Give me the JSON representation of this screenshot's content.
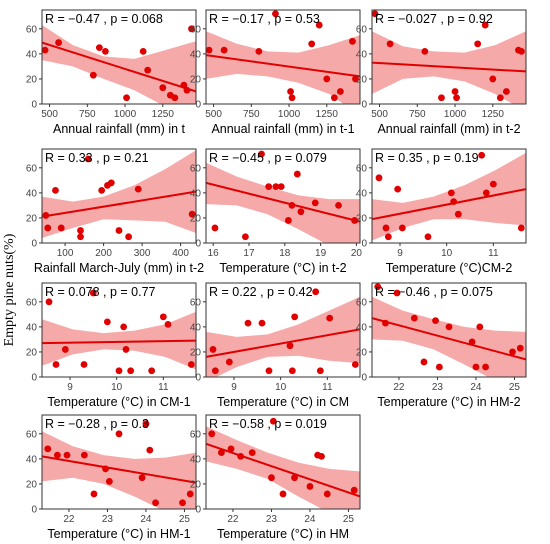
{
  "y_axis_label": "Empty pine nuts(%)",
  "colors": {
    "point": "#e00000",
    "line": "#e00000",
    "band": "#f59a9a",
    "frame": "#333333"
  },
  "chart_data": [
    {
      "type": "scatter",
      "xlabel": "Annual rainfall (mm) in t",
      "stat_text": "R = −0.47 , p = 0.068",
      "xlim": [
        450,
        1470
      ],
      "xticks": [
        500,
        750,
        1000,
        1250,
        1500
      ],
      "ylim": [
        0,
        75
      ],
      "x": [
        470,
        560,
        790,
        830,
        870,
        1010,
        1120,
        1150,
        1250,
        1300,
        1330,
        1390,
        1410,
        1440
      ],
      "y": [
        43,
        49,
        23,
        45,
        42,
        5,
        42,
        27,
        13,
        7,
        5,
        15,
        11,
        60
      ],
      "fit": {
        "x": [
          450,
          1470
        ],
        "y": [
          49,
          10
        ]
      },
      "band": {
        "upper": [
          63,
          47,
          38,
          36,
          43,
          50
        ],
        "lower": [
          35,
          30,
          20,
          11,
          -2,
          -15
        ]
      }
    },
    {
      "type": "scatter",
      "xlabel": "Annual rainfall (mm) in t-1",
      "stat_text": "R = −0.17 , p = 0.53",
      "xlim": [
        450,
        1470
      ],
      "xticks": [
        500,
        750,
        1000,
        1250,
        1500
      ],
      "ylim": [
        0,
        75
      ],
      "x": [
        470,
        570,
        800,
        910,
        1010,
        1020,
        1150,
        1200,
        1250,
        1300,
        1340,
        1420,
        1440
      ],
      "y": [
        43,
        43,
        42,
        72,
        10,
        5,
        48,
        63,
        20,
        5,
        10,
        50,
        20
      ],
      "fit": {
        "x": [
          450,
          1470
        ],
        "y": [
          39,
          22
        ]
      },
      "band": {
        "upper": [
          58,
          48,
          42,
          41,
          47,
          55
        ],
        "lower": [
          20,
          24,
          22,
          17,
          8,
          -9
        ]
      }
    },
    {
      "type": "scatter",
      "xlabel": "Annual rainfall (mm) in t-2",
      "stat_text": "R = −0.027 , p = 0.92",
      "xlim": [
        450,
        1470
      ],
      "xticks": [
        500,
        750,
        1000,
        1250,
        1500
      ],
      "ylim": [
        0,
        75
      ],
      "x": [
        470,
        570,
        800,
        910,
        1000,
        1010,
        1150,
        1200,
        1250,
        1300,
        1340,
        1420,
        1440
      ],
      "y": [
        72,
        48,
        42,
        5,
        10,
        5,
        48,
        63,
        20,
        5,
        10,
        43,
        42
      ],
      "fit": {
        "x": [
          450,
          1470
        ],
        "y": [
          33,
          26
        ]
      },
      "band": {
        "upper": [
          58,
          46,
          42,
          41,
          47,
          58
        ],
        "lower": [
          8,
          20,
          22,
          18,
          8,
          -6
        ]
      }
    },
    {
      "type": "scatter",
      "xlabel": "Rainfall March-July (mm) in t-2",
      "stat_text": "R = 0.33 , p = 0.21",
      "xlim": [
        40,
        440
      ],
      "xticks": [
        100,
        200,
        300,
        400
      ],
      "ylim": [
        0,
        75
      ],
      "x": [
        50,
        55,
        75,
        90,
        140,
        140,
        160,
        195,
        210,
        220,
        240,
        265,
        290,
        430
      ],
      "y": [
        22,
        12,
        42,
        12,
        10,
        5,
        67,
        42,
        46,
        48,
        10,
        5,
        43,
        23
      ],
      "fit": {
        "x": [
          40,
          440
        ],
        "y": [
          21,
          41
        ]
      },
      "band": {
        "upper": [
          37,
          33,
          37,
          46,
          59,
          74
        ],
        "lower": [
          4,
          12,
          19,
          18,
          17,
          8
        ]
      }
    },
    {
      "type": "scatter",
      "xlabel": "Temperature (°C) in t-2",
      "stat_text": "R = −0.45 , p = 0.079",
      "xlim": [
        15.8,
        20.1
      ],
      "xticks": [
        16,
        17,
        18,
        19,
        20
      ],
      "ylim": [
        0,
        75
      ],
      "x": [
        16.05,
        16.9,
        17.35,
        17.55,
        17.75,
        17.9,
        18.1,
        18.2,
        18.35,
        18.45,
        18.85,
        19.5,
        19.95
      ],
      "y": [
        12,
        5,
        71,
        45,
        45,
        45,
        18,
        30,
        55,
        25,
        32,
        30,
        18
      ],
      "fit": {
        "x": [
          15.8,
          20.1
        ],
        "y": [
          48,
          17
        ]
      },
      "band": {
        "upper": [
          64,
          53,
          45,
          38,
          35,
          35
        ],
        "lower": [
          31,
          30,
          23,
          11,
          -2,
          -3
        ]
      }
    },
    {
      "type": "scatter",
      "xlabel": "Temperature (°C)CM-2",
      "stat_text": "R = 0.35 , p = 0.19",
      "xlim": [
        8.4,
        11.7
      ],
      "xticks": [
        9,
        10,
        11
      ],
      "ylim": [
        0,
        75
      ],
      "x": [
        8.55,
        8.7,
        8.75,
        8.95,
        9.05,
        9.6,
        10.1,
        10.15,
        10.25,
        10.75,
        10.85,
        11.0,
        11.6
      ],
      "y": [
        52,
        12,
        5,
        43,
        12,
        5,
        40,
        33,
        23,
        70,
        40,
        47,
        12
      ],
      "fit": {
        "x": [
          8.4,
          11.7
        ],
        "y": [
          19,
          43
        ]
      },
      "band": {
        "upper": [
          35,
          32,
          37,
          46,
          58,
          72
        ],
        "lower": [
          2,
          12,
          19,
          19,
          16,
          14
        ]
      }
    },
    {
      "type": "scatter",
      "xlabel": "Temperature (°C) in CM-1",
      "stat_text": "R = 0.078 , p = 0.77",
      "xlim": [
        8.4,
        11.7
      ],
      "xticks": [
        9,
        10,
        11
      ],
      "ylim": [
        0,
        75
      ],
      "x": [
        8.55,
        8.7,
        8.9,
        9.3,
        9.5,
        9.8,
        10.05,
        10.15,
        10.2,
        10.3,
        10.75,
        11.0,
        11.1,
        11.6
      ],
      "y": [
        60,
        10,
        22,
        10,
        67,
        44,
        5,
        40,
        22,
        5,
        5,
        48,
        42,
        10
      ],
      "fit": {
        "x": [
          8.4,
          11.7
        ],
        "y": [
          27,
          29
        ]
      },
      "band": {
        "upper": [
          46,
          38,
          35,
          37,
          42,
          52
        ],
        "lower": [
          9,
          18,
          22,
          21,
          16,
          6
        ]
      }
    },
    {
      "type": "scatter",
      "xlabel": "Temperature (°C) in CM",
      "stat_text": "R = 0.22 , p = 0.42",
      "xlim": [
        8.4,
        11.7
      ],
      "xticks": [
        9,
        10,
        11
      ],
      "ylim": [
        0,
        75
      ],
      "x": [
        8.55,
        8.6,
        8.9,
        9.3,
        9.6,
        9.75,
        10.2,
        10.25,
        10.3,
        10.75,
        10.85,
        11.05,
        11.6
      ],
      "y": [
        22,
        5,
        12,
        43,
        43,
        5,
        25,
        5,
        48,
        68,
        5,
        47,
        10
      ],
      "fit": {
        "x": [
          8.4,
          11.7
        ],
        "y": [
          16,
          38
        ]
      },
      "band": {
        "upper": [
          36,
          32,
          34,
          42,
          53,
          64
        ],
        "lower": [
          -4,
          8,
          16,
          17,
          13,
          11
        ]
      }
    },
    {
      "type": "scatter",
      "xlabel": "Temperature (°C) in  HM-2",
      "stat_text": "R = −0.46 , p = 0.075",
      "xlim": [
        21.3,
        25.3
      ],
      "xticks": [
        22,
        23,
        24,
        25
      ],
      "ylim": [
        0,
        75
      ],
      "x": [
        21.45,
        21.65,
        21.95,
        22.4,
        22.65,
        22.95,
        23.05,
        23.3,
        23.9,
        24.0,
        24.1,
        24.25,
        24.95,
        25.15
      ],
      "y": [
        72,
        43,
        67,
        47,
        12,
        45,
        8,
        40,
        28,
        8,
        40,
        8,
        20,
        23
      ],
      "fit": {
        "x": [
          21.3,
          25.3
        ],
        "y": [
          47,
          14
        ]
      },
      "band": {
        "upper": [
          64,
          53,
          46,
          40,
          37,
          36
        ],
        "lower": [
          30,
          29,
          22,
          10,
          -3,
          -8
        ]
      }
    },
    {
      "type": "scatter",
      "xlabel": "Temperature (°C) in  HM-1",
      "stat_text": "R = −0.28 , p = 0.3",
      "xlim": [
        21.3,
        25.3
      ],
      "xticks": [
        22,
        23,
        24,
        25
      ],
      "ylim": [
        0,
        75
      ],
      "x": [
        21.45,
        21.7,
        21.95,
        22.4,
        22.65,
        22.95,
        23.05,
        23.3,
        23.9,
        24.0,
        24.1,
        24.25,
        24.95,
        25.15
      ],
      "y": [
        48,
        43,
        43,
        43,
        12,
        32,
        22,
        60,
        25,
        68,
        47,
        5,
        5,
        12
      ],
      "fit": {
        "x": [
          21.3,
          25.3
        ],
        "y": [
          42,
          21
        ]
      },
      "band": {
        "upper": [
          62,
          50,
          43,
          40,
          41,
          45
        ],
        "lower": [
          22,
          25,
          20,
          10,
          -2,
          -8
        ]
      }
    },
    {
      "type": "scatter",
      "xlabel": "Temperature (°C) in    HM",
      "stat_text": "R = −0.58 , p = 0.019",
      "xlim": [
        21.3,
        25.3
      ],
      "xticks": [
        22,
        23,
        24,
        25
      ],
      "ylim": [
        0,
        75
      ],
      "x": [
        21.45,
        21.7,
        21.95,
        22.2,
        22.5,
        23.0,
        23.05,
        23.3,
        23.6,
        24.0,
        24.2,
        24.3,
        24.45,
        25.15
      ],
      "y": [
        60,
        45,
        48,
        42,
        45,
        25,
        70,
        12,
        25,
        18,
        43,
        42,
        12,
        15
      ],
      "fit": {
        "x": [
          21.3,
          25.3
        ],
        "y": [
          52,
          10
        ]
      },
      "band": {
        "upper": [
          66,
          55,
          45,
          37,
          32,
          30
        ],
        "lower": [
          38,
          32,
          24,
          10,
          -3,
          -10
        ]
      }
    }
  ]
}
